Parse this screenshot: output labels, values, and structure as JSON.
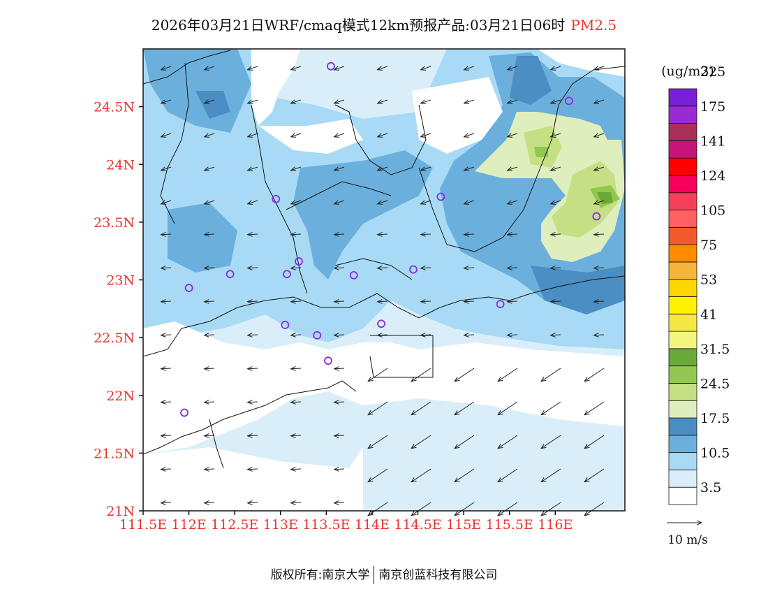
{
  "title": {
    "main": "2026年03月21日WRF/cmaq模式12km预报产品:03月21日06时",
    "pollutant": "PM2.5"
  },
  "axes": {
    "lat_labels": [
      "24.5N",
      "24N",
      "23.5N",
      "23N",
      "22.5N",
      "22N",
      "21.5N",
      "21N"
    ],
    "lon_labels": [
      "111.5E",
      "112E",
      "112.5E",
      "113E",
      "113.5E",
      "114E",
      "114.5E",
      "115E",
      "115.5E",
      "116E"
    ],
    "label_color": "#e8352c"
  },
  "legend": {
    "unit": "(ug/m3)",
    "colors": [
      "#ffffff",
      "#daeefa",
      "#a8daf5",
      "#6bb0dc",
      "#4a8ec4",
      "#dfeebd",
      "#c5df84",
      "#93c850",
      "#6aaa3a",
      "#f4f57e",
      "#f5e845",
      "#fff200",
      "#ffd700",
      "#f7b43a",
      "#ff8c00",
      "#f25a2a",
      "#ff6060",
      "#f5405a",
      "#f5005a",
      "#ff0000",
      "#c8147a",
      "#a8305a",
      "#9a2ad4",
      "#7a1fd8"
    ],
    "labels": [
      "3.5",
      "10.5",
      "17.5",
      "24.5",
      "31.5",
      "41",
      "53",
      "75",
      "105",
      "124",
      "141",
      "175",
      "225"
    ]
  },
  "wind_reference": {
    "label": "10 m/s"
  },
  "stations": [
    {
      "lon": 113.55,
      "lat": 24.85
    },
    {
      "lon": 116.15,
      "lat": 24.55
    },
    {
      "lon": 112.95,
      "lat": 23.7
    },
    {
      "lon": 114.75,
      "lat": 23.72
    },
    {
      "lon": 116.45,
      "lat": 23.55
    },
    {
      "lon": 112.0,
      "lat": 22.93
    },
    {
      "lon": 112.45,
      "lat": 23.05
    },
    {
      "lon": 113.07,
      "lat": 23.05
    },
    {
      "lon": 113.2,
      "lat": 23.16
    },
    {
      "lon": 113.8,
      "lat": 23.04
    },
    {
      "lon": 114.45,
      "lat": 23.09
    },
    {
      "lon": 115.4,
      "lat": 22.79
    },
    {
      "lon": 113.05,
      "lat": 22.61
    },
    {
      "lon": 113.4,
      "lat": 22.52
    },
    {
      "lon": 114.1,
      "lat": 22.62
    },
    {
      "lon": 113.52,
      "lat": 22.3
    },
    {
      "lon": 111.95,
      "lat": 21.85
    }
  ],
  "footer": {
    "left": "版权所有:南京大学",
    "right": "南京创蓝科技有限公司"
  }
}
